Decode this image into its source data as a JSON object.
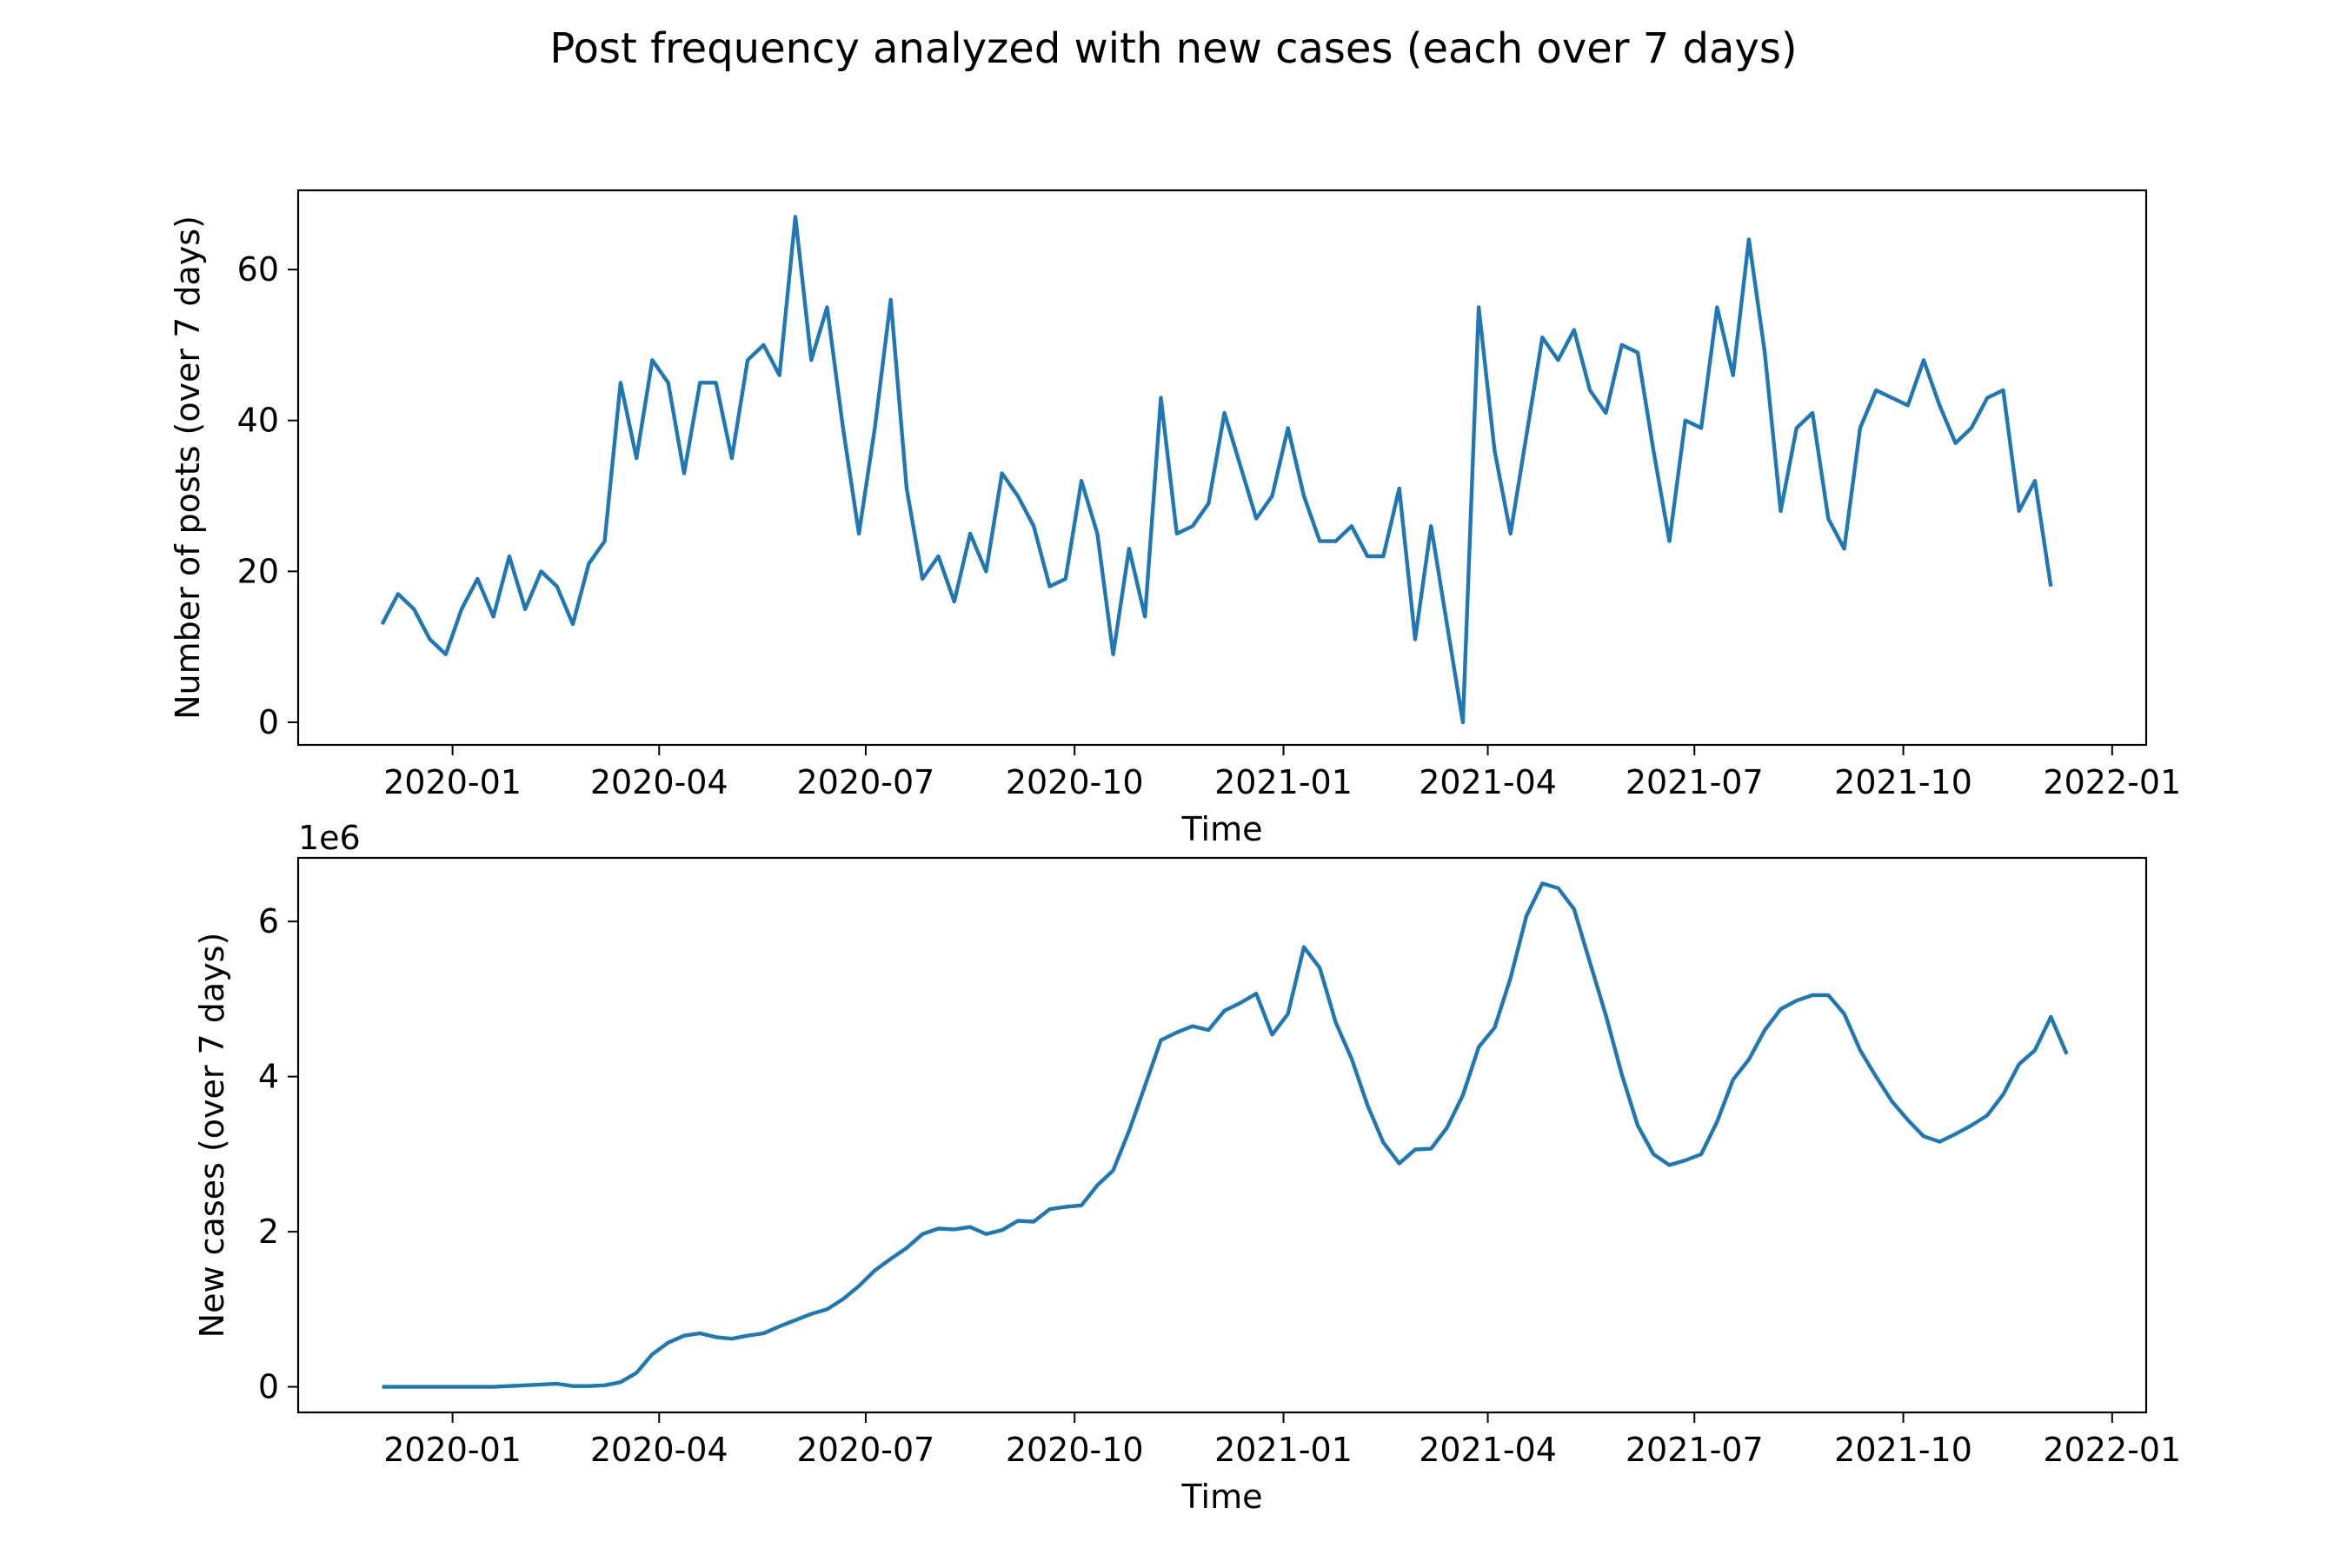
{
  "chart_data": {
    "title": "Post frequency analyzed with new cases (each over 7 days)",
    "subplots": [
      {
        "type": "line",
        "xlabel": "Time",
        "ylabel": "Number of posts (over 7 days)",
        "ylim": [
          -3,
          70.5
        ],
        "yticks": [
          0,
          20,
          40,
          60
        ],
        "ytick_labels": [
          "0",
          "20",
          "40",
          "60"
        ],
        "xlim": [
          "2019-10-25",
          "2022-01-16"
        ],
        "xticks": [
          "2020-01-01",
          "2020-04-01",
          "2020-07-01",
          "2020-10-01",
          "2021-01-01",
          "2021-04-01",
          "2021-07-01",
          "2021-10-01",
          "2022-01-01"
        ],
        "xtick_labels": [
          "2020-01",
          "2020-04",
          "2020-07",
          "2020-10",
          "2021-01",
          "2021-04",
          "2021-07",
          "2021-10",
          "2022-01"
        ],
        "grid": false,
        "series": [
          {
            "color": "#1f77b4",
            "start": "2019-12-01",
            "step_days": 7,
            "values": [
              13,
              17,
              15,
              11,
              9,
              15,
              19,
              14,
              22,
              15,
              20,
              18,
              13,
              21,
              24,
              45,
              35,
              48,
              45,
              33,
              45,
              45,
              35,
              48,
              50,
              46,
              67,
              48,
              55,
              39,
              25,
              39,
              56,
              31,
              19,
              22,
              16,
              25,
              20,
              33,
              30,
              26,
              18,
              19,
              32,
              25,
              9,
              23,
              14,
              43,
              25,
              26,
              29,
              41,
              34,
              27,
              30,
              39,
              30,
              24,
              24,
              26,
              22,
              22,
              31,
              11,
              26,
              13,
              0,
              55,
              36,
              25,
              38,
              51,
              48,
              52,
              44,
              41,
              50,
              49,
              36,
              24,
              40,
              39,
              55,
              46,
              64,
              49,
              28,
              39,
              41,
              27,
              23,
              39,
              44,
              43,
              42,
              48,
              42,
              37,
              39,
              43,
              44,
              28,
              32,
              18
            ]
          }
        ]
      },
      {
        "type": "line",
        "xlabel": "Time",
        "ylabel": "New cases (over 7 days)",
        "offset_label": "1e6",
        "ylim": [
          -0.33,
          6.82
        ],
        "yticks": [
          0,
          2,
          4,
          6
        ],
        "ytick_labels": [
          "0",
          "2",
          "4",
          "6"
        ],
        "xlim": [
          "2019-10-25",
          "2022-01-16"
        ],
        "xticks": [
          "2020-01-01",
          "2020-04-01",
          "2020-07-01",
          "2020-10-01",
          "2021-01-01",
          "2021-04-01",
          "2021-07-01",
          "2021-10-01",
          "2022-01-01"
        ],
        "xtick_labels": [
          "2020-01",
          "2020-04",
          "2020-07",
          "2020-10",
          "2021-01",
          "2021-04",
          "2021-07",
          "2021-10",
          "2022-01"
        ],
        "grid": false,
        "series": [
          {
            "color": "#1f77b4",
            "start": "2019-12-01",
            "step_days": 7,
            "values": [
              0,
              0,
              0,
              0,
              0,
              0,
              0,
              0,
              0.01,
              0.02,
              0.03,
              0.04,
              0.01,
              0.01,
              0.02,
              0.06,
              0.18,
              0.42,
              0.57,
              0.66,
              0.69,
              0.64,
              0.62,
              0.66,
              0.69,
              0.78,
              0.86,
              0.94,
              1.0,
              1.13,
              1.3,
              1.5,
              1.65,
              1.79,
              1.97,
              2.04,
              2.03,
              2.06,
              1.97,
              2.02,
              2.14,
              2.13,
              2.29,
              2.32,
              2.34,
              2.6,
              2.79,
              3.3,
              3.88,
              4.47,
              4.57,
              4.65,
              4.6,
              4.85,
              4.95,
              5.07,
              4.54,
              4.81,
              5.67,
              5.4,
              4.7,
              4.23,
              3.63,
              3.15,
              2.88,
              3.06,
              3.07,
              3.34,
              3.76,
              4.38,
              4.63,
              5.27,
              6.07,
              6.49,
              6.43,
              6.16,
              5.47,
              4.79,
              4.03,
              3.37,
              3.0,
              2.86,
              2.92,
              3.0,
              3.42,
              3.96,
              4.22,
              4.6,
              4.87,
              4.98,
              5.05,
              5.05,
              4.81,
              4.34,
              4.0,
              3.68,
              3.44,
              3.23,
              3.16,
              3.26,
              3.37,
              3.5,
              3.77,
              4.16,
              4.34,
              4.77,
              4.29
            ]
          }
        ]
      }
    ]
  }
}
